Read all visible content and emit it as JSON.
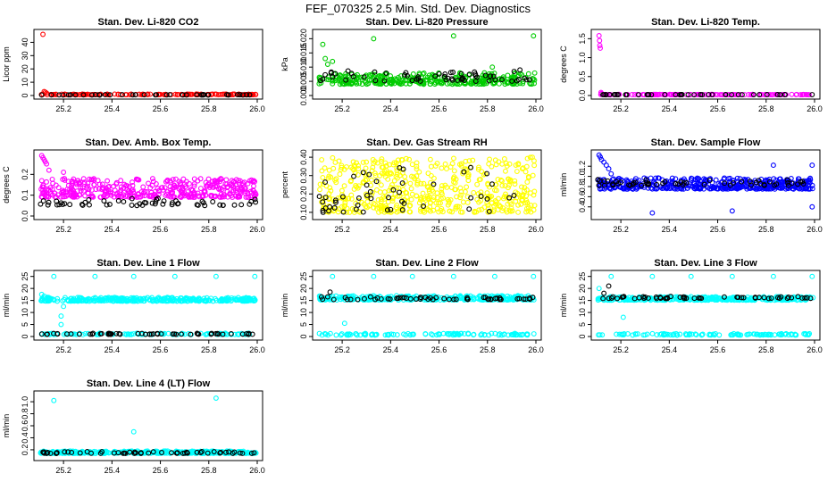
{
  "page": {
    "title": "FEF_070325  2.5 Min. Std. Dev. Diagnostics"
  },
  "colors": {
    "black": "#000000",
    "red": "#ff0000",
    "green": "#00cc00",
    "magenta": "#ff00ff",
    "yellow": "#ffff00",
    "blue": "#0000ff",
    "cyan": "#00ffff"
  },
  "chart_data": [
    {
      "type": "scatter",
      "title": "Stan. Dev. Li-820 CO2",
      "ylabel": "Licor ppm",
      "xlim": [
        25.1,
        26.0
      ],
      "ylim": [
        0,
        47
      ],
      "yticks": [
        "0",
        "10",
        "20",
        "30",
        "40"
      ],
      "xticks": [
        "25.2",
        "25.4",
        "25.6",
        "25.8",
        "26.0"
      ],
      "series": [
        {
          "color": "red",
          "spike": [
            [
              25.115,
              46
            ],
            [
              25.12,
              3
            ],
            [
              25.125,
              2.5
            ],
            [
              25.13,
              1.8
            ]
          ],
          "base": 0.6,
          "noise": 0.5,
          "n": 130
        },
        {
          "color": "black",
          "base": 0.4,
          "noise": 0.3,
          "n": 40
        }
      ]
    },
    {
      "type": "scatter",
      "title": "Stan. Dev. Li-820 Pressure",
      "ylabel": "kPa",
      "xlim": [
        25.1,
        26.0
      ],
      "ylim": [
        0,
        0.022
      ],
      "yticks": [
        "0.000",
        "0.005",
        "0.010",
        "0.015",
        "0.020"
      ],
      "xticks": [
        "25.2",
        "25.4",
        "25.6",
        "25.8",
        "26.0"
      ],
      "series": [
        {
          "color": "green",
          "spike": [
            [
              25.12,
              0.018
            ],
            [
              25.33,
              0.02
            ],
            [
              25.66,
              0.021
            ],
            [
              25.99,
              0.021
            ],
            [
              25.16,
              0.012
            ],
            [
              25.82,
              0.01
            ],
            [
              25.14,
              0.011
            ],
            [
              25.13,
              0.013
            ]
          ],
          "base": 0.004,
          "noise": 0.004,
          "n": 330
        },
        {
          "color": "black",
          "base": 0.005,
          "noise": 0.004,
          "n": 60
        }
      ]
    },
    {
      "type": "scatter",
      "title": "Stan. Dev. Li-820 Temp.",
      "ylabel": "degrees C",
      "xlim": [
        25.1,
        26.0
      ],
      "ylim": [
        0,
        1.65
      ],
      "yticks": [
        "0.0",
        "0.5",
        "1.0",
        "1.5"
      ],
      "xticks": [
        "25.2",
        "25.4",
        "25.6",
        "25.8",
        "26.0"
      ],
      "series": [
        {
          "color": "magenta",
          "spike": [
            [
              25.11,
              1.58
            ],
            [
              25.112,
              1.45
            ],
            [
              25.113,
              1.32
            ],
            [
              25.115,
              1.25
            ],
            [
              25.118,
              0.08
            ],
            [
              25.12,
              0.05
            ]
          ],
          "base": 0.02,
          "noise": 0.01,
          "n": 130
        },
        {
          "color": "black",
          "base": 0.02,
          "noise": 0.005,
          "n": 40
        }
      ]
    },
    {
      "type": "scatter",
      "title": "Stan. Dev. Amb. Box Temp.",
      "ylabel": "degrees C",
      "xlim": [
        25.1,
        26.0
      ],
      "ylim": [
        0,
        0.3
      ],
      "yticks": [
        "0.0",
        "0.1",
        "0.2"
      ],
      "xticks": [
        "25.2",
        "25.4",
        "25.6",
        "25.8",
        "26.0"
      ],
      "series": [
        {
          "color": "magenta",
          "spike": [
            [
              25.11,
              0.29
            ],
            [
              25.115,
              0.28
            ],
            [
              25.12,
              0.27
            ],
            [
              25.125,
              0.26
            ],
            [
              25.13,
              0.25
            ],
            [
              25.14,
              0.22
            ],
            [
              25.2,
              0.21
            ]
          ],
          "base": 0.09,
          "noise": 0.09,
          "n": 420
        },
        {
          "color": "black",
          "base": 0.05,
          "noise": 0.035,
          "n": 55
        }
      ]
    },
    {
      "type": "scatter",
      "title": "Stan. Dev. Gas Stream RH",
      "ylabel": "percent",
      "xlim": [
        25.1,
        26.0
      ],
      "ylim": [
        0.08,
        0.42
      ],
      "yticks": [
        "0.10",
        "0.20",
        "0.30",
        "0.40"
      ],
      "xticks": [
        "25.2",
        "25.4",
        "25.6",
        "25.8",
        "26.0"
      ],
      "series": [
        {
          "color": "yellow",
          "base": 0.1,
          "noise": 0.3,
          "n": 520
        },
        {
          "color": "black",
          "base": 0.1,
          "noise": 0.25,
          "n": 50
        }
      ]
    },
    {
      "type": "scatter",
      "title": "Stan. Dev. Sample Flow",
      "ylabel": "ml/min",
      "xlim": [
        25.1,
        26.0
      ],
      "ylim": [
        0.22,
        1.45
      ],
      "yticks": [
        "0.4",
        "0.6",
        "0.8",
        "1.0",
        "1.2"
      ],
      "xticks": [
        "25.2",
        "25.4",
        "25.6",
        "25.8",
        "26.0"
      ],
      "series": [
        {
          "color": "blue",
          "spike": [
            [
              25.11,
              1.42
            ],
            [
              25.115,
              1.38
            ],
            [
              25.12,
              1.33
            ],
            [
              25.13,
              1.28
            ],
            [
              25.14,
              1.22
            ],
            [
              25.15,
              1.15
            ],
            [
              25.16,
              1.05
            ],
            [
              25.17,
              0.95
            ],
            [
              25.33,
              0.28
            ],
            [
              25.66,
              0.32
            ],
            [
              25.99,
              0.4
            ],
            [
              25.99,
              1.22
            ],
            [
              25.83,
              1.22
            ]
          ],
          "base": 0.75,
          "noise": 0.22,
          "n": 420
        },
        {
          "color": "black",
          "base": 0.82,
          "noise": 0.12,
          "n": 55
        }
      ]
    },
    {
      "type": "scatter",
      "title": "Stan. Dev. Line 1 Flow",
      "ylabel": "ml/min",
      "xlim": [
        25.1,
        26.0
      ],
      "ylim": [
        0,
        26
      ],
      "yticks": [
        "0",
        "5",
        "10",
        "15",
        "20",
        "25"
      ],
      "xticks": [
        "25.2",
        "25.4",
        "25.6",
        "25.8",
        "26.0"
      ],
      "series": [
        {
          "color": "cyan",
          "spike": [
            [
              25.16,
              25
            ],
            [
              25.33,
              25
            ],
            [
              25.49,
              25
            ],
            [
              25.66,
              25
            ],
            [
              25.83,
              25
            ],
            [
              25.99,
              25
            ],
            [
              25.11,
              17.5
            ],
            [
              25.12,
              16.8
            ],
            [
              25.2,
              12.5
            ],
            [
              25.19,
              8.5
            ],
            [
              25.19,
              5
            ]
          ],
          "base": 14.7,
          "noise": 1.6,
          "n": 330
        },
        {
          "color": "cyan",
          "base": 0.8,
          "noise": 0.6,
          "n": 100
        },
        {
          "color": "black",
          "base": 0.9,
          "noise": 0.4,
          "n": 55
        }
      ]
    },
    {
      "type": "scatter",
      "title": "Stan. Dev. Line 2 Flow",
      "ylabel": "ml/min",
      "xlim": [
        25.1,
        26.0
      ],
      "ylim": [
        0,
        26
      ],
      "yticks": [
        "0",
        "5",
        "10",
        "15",
        "20",
        "25"
      ],
      "xticks": [
        "25.2",
        "25.4",
        "25.6",
        "25.8",
        "26.0"
      ],
      "series": [
        {
          "color": "cyan",
          "spike": [
            [
              25.16,
              25
            ],
            [
              25.33,
              25
            ],
            [
              25.49,
              25
            ],
            [
              25.66,
              25
            ],
            [
              25.83,
              25
            ],
            [
              25.99,
              25
            ],
            [
              25.21,
              5.5
            ]
          ],
          "base": 15.2,
          "noise": 1.8,
          "n": 330
        },
        {
          "color": "cyan",
          "base": 0.6,
          "noise": 0.7,
          "n": 110
        },
        {
          "color": "black",
          "spike": [
            [
              25.15,
              18.5
            ],
            [
              25.14,
              16.5
            ]
          ],
          "base": 15.4,
          "noise": 1.2,
          "n": 55
        }
      ]
    },
    {
      "type": "scatter",
      "title": "Stan. Dev. Line 3 Flow",
      "ylabel": "ml/min",
      "xlim": [
        25.1,
        26.0
      ],
      "ylim": [
        0,
        26
      ],
      "yticks": [
        "0",
        "5",
        "10",
        "15",
        "20",
        "25"
      ],
      "xticks": [
        "25.2",
        "25.4",
        "25.6",
        "25.8",
        "26.0"
      ],
      "series": [
        {
          "color": "cyan",
          "spike": [
            [
              25.16,
              25
            ],
            [
              25.33,
              25
            ],
            [
              25.49,
              25
            ],
            [
              25.66,
              25
            ],
            [
              25.83,
              25
            ],
            [
              25.99,
              25
            ],
            [
              25.11,
              20
            ],
            [
              25.21,
              8
            ]
          ],
          "base": 15.1,
          "noise": 1.5,
          "n": 330
        },
        {
          "color": "cyan",
          "base": 0.6,
          "noise": 0.6,
          "n": 110
        },
        {
          "color": "black",
          "spike": [
            [
              25.15,
              21
            ],
            [
              25.13,
              18
            ]
          ],
          "base": 15.8,
          "noise": 0.9,
          "n": 55
        }
      ]
    },
    {
      "type": "scatter",
      "title": "Stan. Dev. Line 4 (LT) Flow",
      "ylabel": "ml/min",
      "xlim": [
        25.1,
        26.0
      ],
      "ylim": [
        0.08,
        1.12
      ],
      "yticks": [
        "0.2",
        "0.4",
        "0.6",
        "0.8",
        "1.0"
      ],
      "xticks": [
        "25.2",
        "25.4",
        "25.6",
        "25.8",
        "26.0"
      ],
      "series": [
        {
          "color": "cyan",
          "spike": [
            [
              25.16,
              1.02
            ],
            [
              25.83,
              1.06
            ],
            [
              25.49,
              0.5
            ]
          ],
          "base": 0.14,
          "noise": 0.04,
          "n": 330
        },
        {
          "color": "black",
          "base": 0.14,
          "noise": 0.03,
          "n": 55
        }
      ]
    }
  ]
}
